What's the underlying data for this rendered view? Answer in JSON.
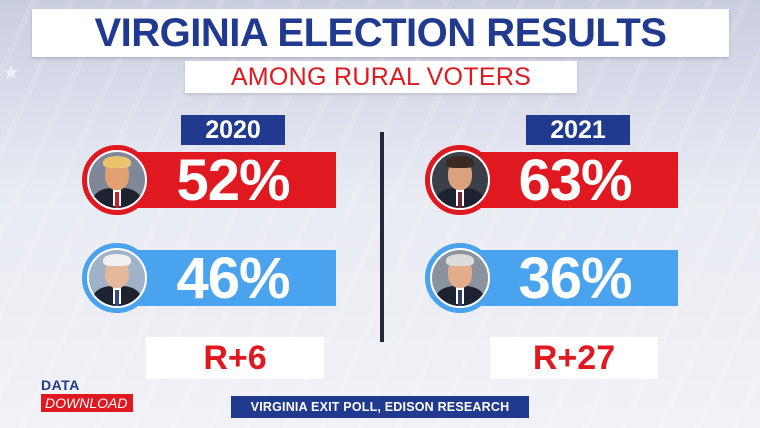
{
  "header": {
    "title": "VIRGINIA ELECTION RESULTS",
    "subtitle": "AMONG RURAL VOTERS"
  },
  "panels": [
    {
      "year": "2020",
      "rows": [
        {
          "value": "52%",
          "party": "R",
          "color": "#e0181f"
        },
        {
          "value": "46%",
          "party": "D",
          "color": "#4aa3ef"
        }
      ],
      "margin": "R+6"
    },
    {
      "year": "2021",
      "rows": [
        {
          "value": "63%",
          "party": "R",
          "color": "#e0181f"
        },
        {
          "value": "36%",
          "party": "D",
          "color": "#4aa3ef"
        }
      ],
      "margin": "R+27"
    }
  ],
  "logo": {
    "line1": "DATA",
    "line2": "DOWNLOAD"
  },
  "source": "VIRGINIA EXIT POLL, EDISON RESEARCH",
  "colors": {
    "navy": "#203a8f",
    "red": "#e0181f",
    "blue": "#4aa3ef"
  }
}
